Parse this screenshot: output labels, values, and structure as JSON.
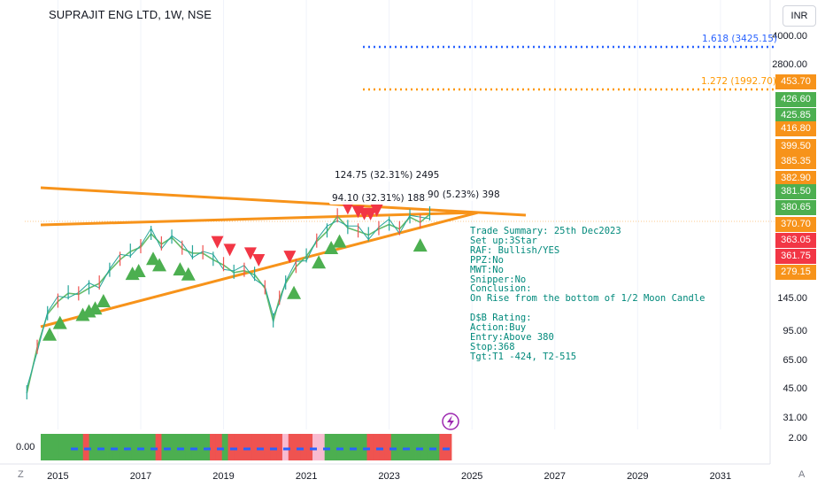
{
  "header": {
    "title": "SUPRAJIT ENG LTD, 1W, NSE",
    "currency": "INR"
  },
  "indicator": {
    "value_label": "0.00"
  },
  "corners": {
    "left": "Z",
    "right": "A"
  },
  "colors": {
    "bull": "#4caf50",
    "bear": "#f23645",
    "ema": "#66bb6a",
    "trend": "#f7931a",
    "fib_161": "#2962ff",
    "fib_127": "#ff9800",
    "text_teal": "#00897b"
  },
  "chart_data": {
    "type": "line",
    "title": "SUPRAJIT ENG LTD, 1W, NSE",
    "y_scale": "log",
    "y_ticks": [
      "4000.00",
      "2800.00",
      "145.00",
      "95.00",
      "65.00",
      "45.00",
      "31.00",
      "2.00"
    ],
    "x_ticks": [
      "2015",
      "2017",
      "2019",
      "2021",
      "2023",
      "2025",
      "2027",
      "2029",
      "2031"
    ],
    "x_range": [
      2014.2,
      2032.2
    ],
    "y_range": [
      25,
      4800
    ],
    "series": [
      {
        "values_x": [
          2014.25,
          2014.5,
          2014.75,
          2015.0,
          2015.25,
          2015.5,
          2015.75,
          2016.0,
          2016.25,
          2016.5,
          2016.75,
          2017.0,
          2017.25,
          2017.5,
          2017.75,
          2018.0,
          2018.25,
          2018.5,
          2018.75,
          2019.0,
          2019.25,
          2019.5,
          2019.75,
          2020.0,
          2020.2,
          2020.35,
          2020.5,
          2020.75,
          2021.0,
          2021.25,
          2021.5,
          2021.75,
          2022.0,
          2022.25,
          2022.5,
          2022.75,
          2023.0,
          2023.25,
          2023.5,
          2023.75,
          2023.98
        ],
        "values": [
          42,
          75,
          115,
          135,
          150,
          148,
          160,
          170,
          200,
          230,
          255,
          270,
          320,
          280,
          305,
          265,
          250,
          250,
          230,
          215,
          195,
          200,
          190,
          160,
          105,
          140,
          170,
          210,
          240,
          290,
          330,
          400,
          345,
          330,
          315,
          340,
          360,
          340,
          395,
          370,
          410
        ]
      }
    ],
    "fib_levels": [
      {
        "label": "1.618 (3425.15)",
        "value": 3425.15
      },
      {
        "label": "1.272 (1992.70)",
        "value": 1992.7
      }
    ],
    "price_labels": [
      "453.70",
      "426.60",
      "425.85",
      "416.80",
      "399.50",
      "385.35",
      "382.90",
      "381.50",
      "380.65",
      "370.70",
      "363.05",
      "361.75",
      "279.15"
    ],
    "price_label_colors": [
      "#f7931a",
      "#4caf50",
      "#4caf50",
      "#f7931a",
      "#f7931a",
      "#f7931a",
      "#f7931a",
      "#4caf50",
      "#4caf50",
      "#f7931a",
      "#f23645",
      "#f23645",
      "#f7931a"
    ],
    "measures": [
      "124.75 (32.31%) 2495",
      "94.10 (32.31%) 1882",
      "90 (5.23%) 398"
    ],
    "buy_signals": [
      2014.8,
      2015.05,
      2015.6,
      2015.75,
      2015.9,
      2016.1,
      2016.8,
      2016.95,
      2017.3,
      2017.45,
      2017.95,
      2018.15,
      2020.7,
      2021.3,
      2021.6,
      2021.8,
      2023.75
    ],
    "sell_signals": [
      2018.85,
      2019.15,
      2019.65,
      2019.85,
      2020.6,
      2022.0,
      2022.25,
      2022.4,
      2022.55,
      2022.7
    ],
    "trend_lines": 3,
    "histogram_pattern": [
      "g",
      "g",
      "g",
      "g",
      "g",
      "g",
      "g",
      "r",
      "g",
      "g",
      "g",
      "g",
      "g",
      "g",
      "g",
      "g",
      "g",
      "g",
      "g",
      "r",
      "g",
      "g",
      "g",
      "g",
      "g",
      "g",
      "g",
      "g",
      "r",
      "r",
      "g",
      "r",
      "r",
      "r",
      "r",
      "r",
      "r",
      "r",
      "r",
      "r",
      "w",
      "r",
      "r",
      "r",
      "r",
      "w",
      "w",
      "g",
      "g",
      "g",
      "g",
      "g",
      "g",
      "g",
      "r",
      "r",
      "r",
      "r",
      "g",
      "g",
      "g",
      "g",
      "g",
      "g",
      "g",
      "g",
      "r",
      "r"
    ]
  },
  "summary": {
    "text": "Trade Summary: 25th Dec2023\nSet up:3Star\nRAF: Bullish/YES\nPPZ:No\nMWT:No\nSnipper:No\nConclusion:\nOn Rise from the bottom of 1/2 Moon Candle\n\nD$B Rating:\nAction:Buy\nEntry:Above 380\nStop:368\nTgt:T1 -424, T2-515"
  }
}
